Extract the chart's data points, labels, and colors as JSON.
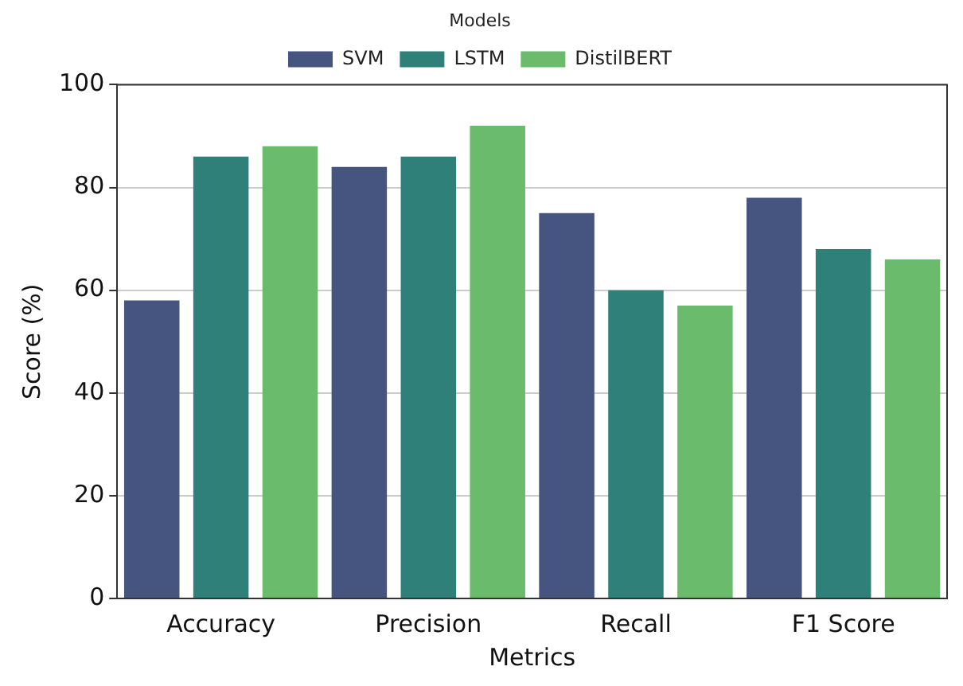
{
  "chart_data": {
    "type": "bar",
    "xlabel": "Metrics",
    "ylabel": "Score (%)",
    "legend_title": "Models",
    "categories": [
      "Accuracy",
      "Precision",
      "Recall",
      "F1 Score"
    ],
    "series": [
      {
        "name": "SVM",
        "color": "#46557f",
        "values": [
          58,
          84,
          75,
          78
        ]
      },
      {
        "name": "LSTM",
        "color": "#2e8079",
        "values": [
          86,
          86,
          60,
          68
        ]
      },
      {
        "name": "DistilBERT",
        "color": "#6bbb6c",
        "values": [
          88,
          92,
          57,
          66
        ]
      }
    ],
    "ylim": [
      0,
      100
    ],
    "yticks": [
      0,
      20,
      40,
      60,
      80,
      100
    ],
    "grid": "y",
    "legend": "top"
  }
}
